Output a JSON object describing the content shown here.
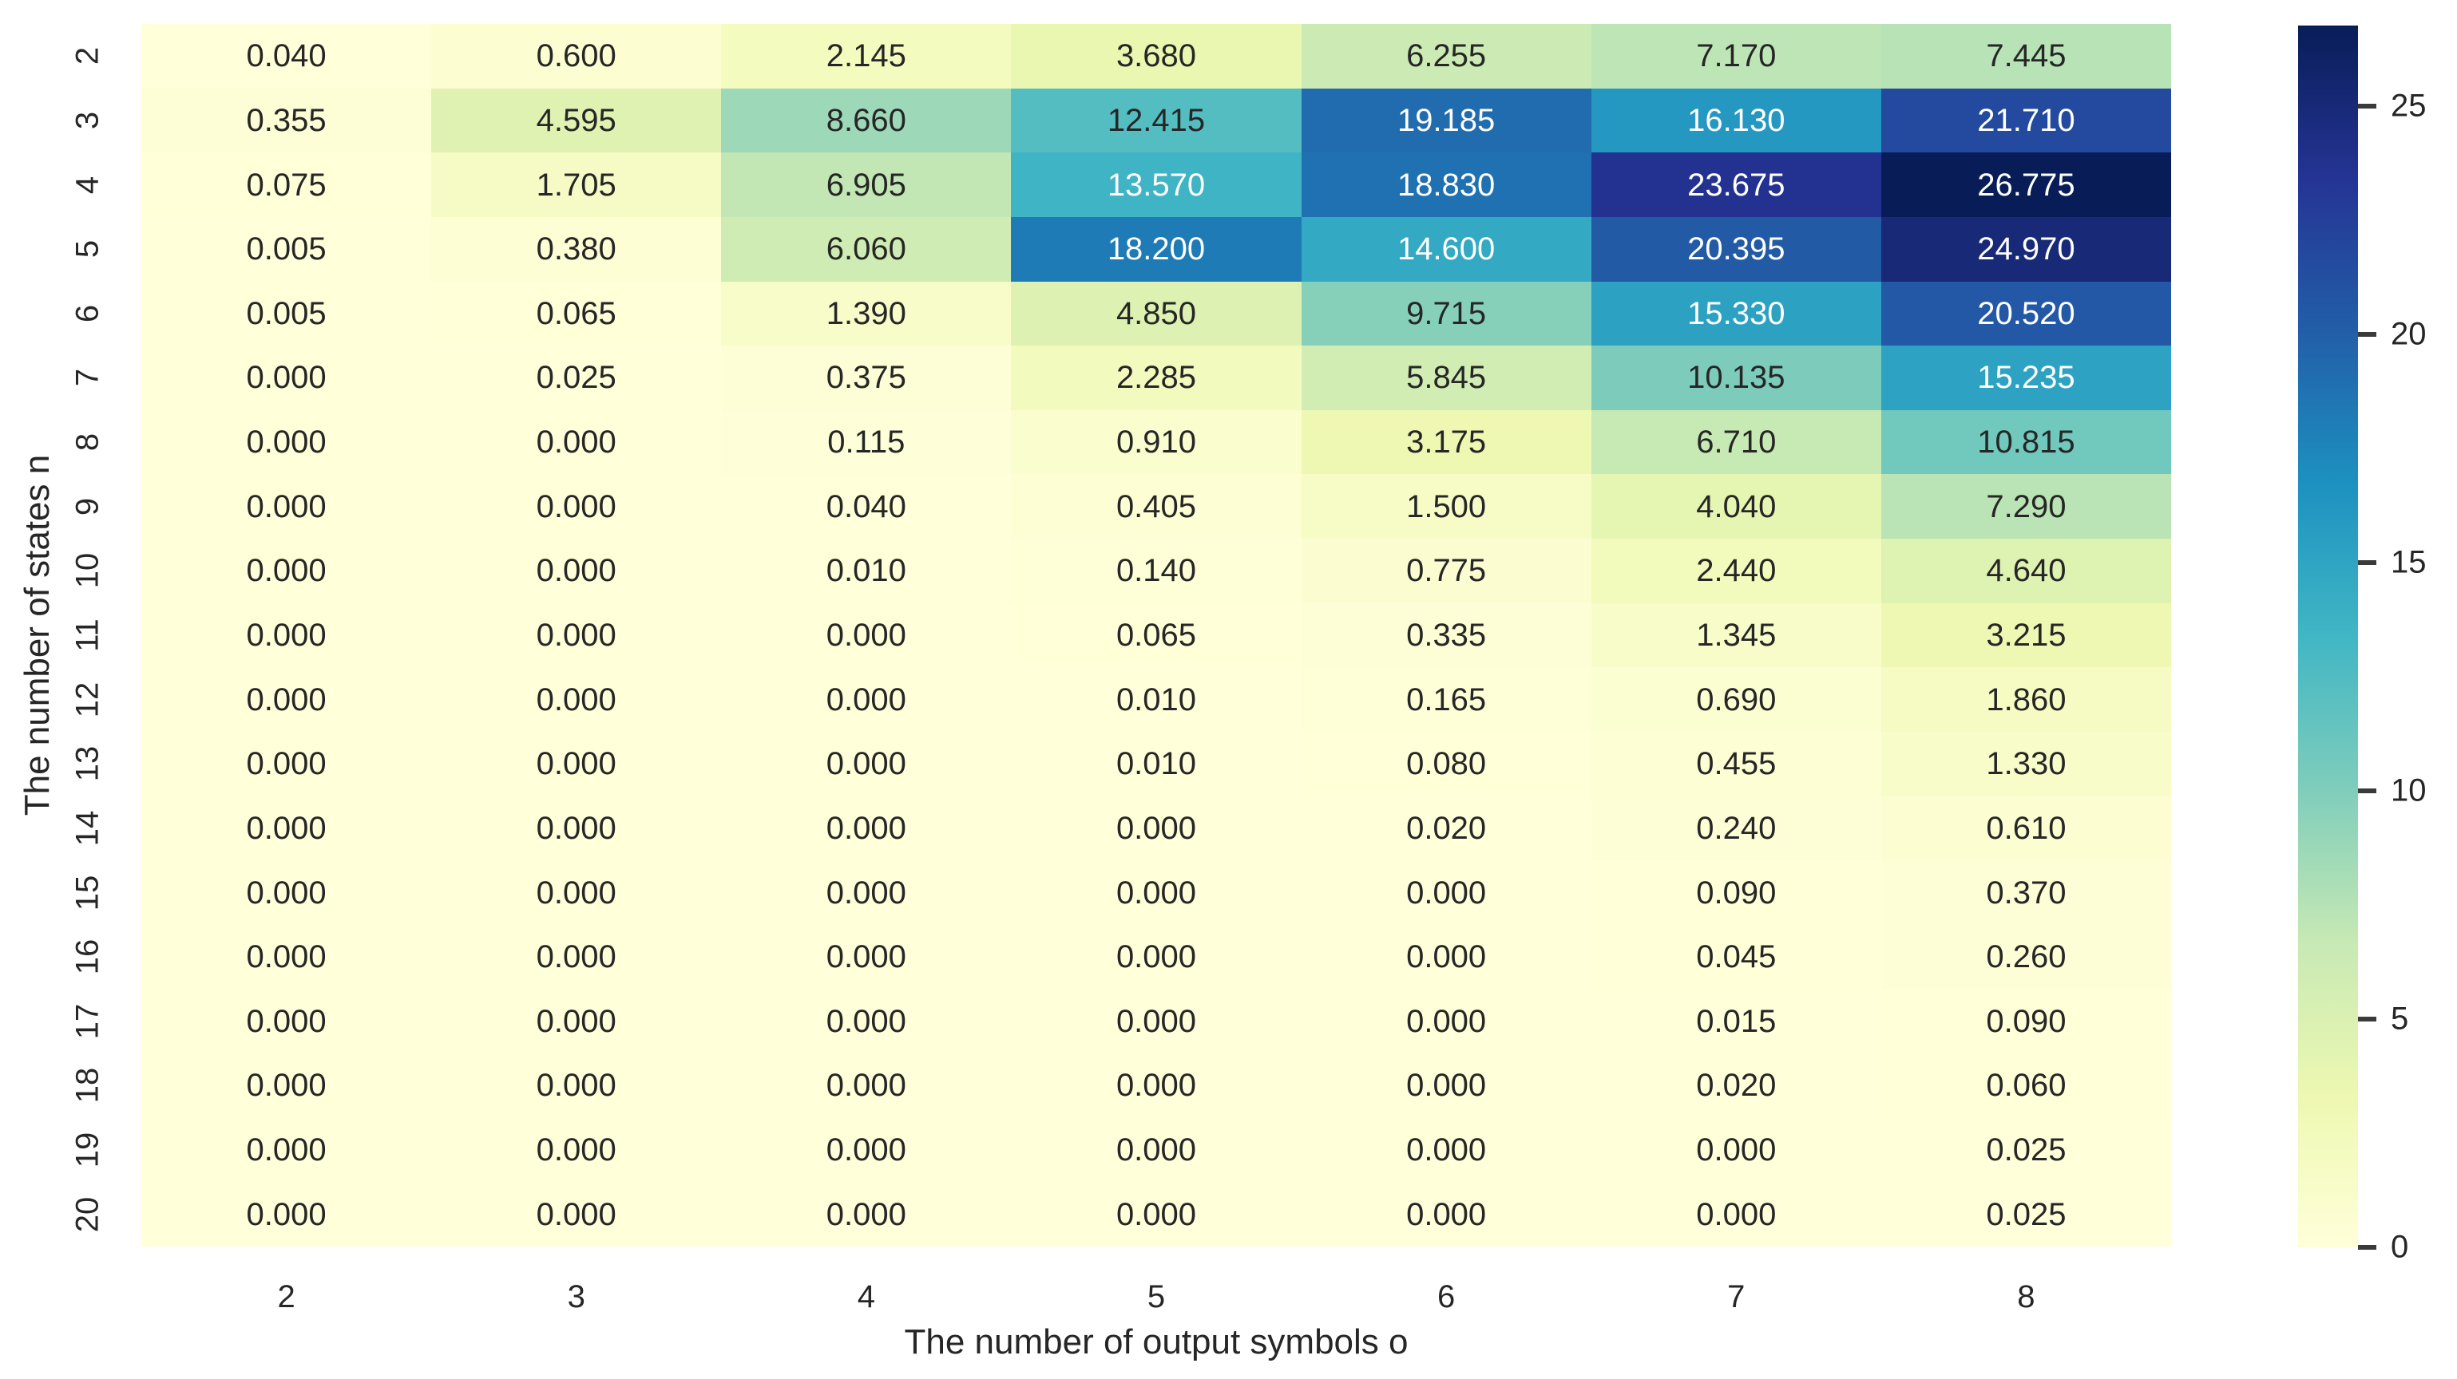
{
  "chart_data": {
    "type": "heatmap",
    "title": "",
    "xlabel": "The number of output symbols o",
    "ylabel": "The number of states n",
    "x_tick_labels": [
      "2",
      "3",
      "4",
      "5",
      "6",
      "7",
      "8"
    ],
    "y_tick_labels": [
      "2",
      "3",
      "4",
      "5",
      "6",
      "7",
      "8",
      "9",
      "10",
      "11",
      "12",
      "13",
      "14",
      "15",
      "16",
      "17",
      "18",
      "19",
      "20"
    ],
    "values": [
      [
        0.04,
        0.6,
        2.145,
        3.68,
        6.255,
        7.17,
        7.445
      ],
      [
        0.355,
        4.595,
        8.66,
        12.415,
        19.185,
        16.13,
        21.71
      ],
      [
        0.075,
        1.705,
        6.905,
        13.57,
        18.83,
        23.675,
        26.775
      ],
      [
        0.005,
        0.38,
        6.06,
        18.2,
        14.6,
        20.395,
        24.97
      ],
      [
        0.005,
        0.065,
        1.39,
        4.85,
        9.715,
        15.33,
        20.52
      ],
      [
        0.0,
        0.025,
        0.375,
        2.285,
        5.845,
        10.135,
        15.235
      ],
      [
        0.0,
        0.0,
        0.115,
        0.91,
        3.175,
        6.71,
        10.815
      ],
      [
        0.0,
        0.0,
        0.04,
        0.405,
        1.5,
        4.04,
        7.29
      ],
      [
        0.0,
        0.0,
        0.01,
        0.14,
        0.775,
        2.44,
        4.64
      ],
      [
        0.0,
        0.0,
        0.0,
        0.065,
        0.335,
        1.345,
        3.215
      ],
      [
        0.0,
        0.0,
        0.0,
        0.01,
        0.165,
        0.69,
        1.86
      ],
      [
        0.0,
        0.0,
        0.0,
        0.01,
        0.08,
        0.455,
        1.33
      ],
      [
        0.0,
        0.0,
        0.0,
        0.0,
        0.02,
        0.24,
        0.61
      ],
      [
        0.0,
        0.0,
        0.0,
        0.0,
        0.0,
        0.09,
        0.37
      ],
      [
        0.0,
        0.0,
        0.0,
        0.0,
        0.0,
        0.045,
        0.26
      ],
      [
        0.0,
        0.0,
        0.0,
        0.0,
        0.0,
        0.015,
        0.09
      ],
      [
        0.0,
        0.0,
        0.0,
        0.0,
        0.0,
        0.02,
        0.06
      ],
      [
        0.0,
        0.0,
        0.0,
        0.0,
        0.0,
        0.0,
        0.025
      ],
      [
        0.0,
        0.0,
        0.0,
        0.0,
        0.0,
        0.0,
        0.025
      ]
    ],
    "value_decimals": 3,
    "vmin": 0,
    "vmax": 26.775,
    "colormap_name": "YlGnBu",
    "colormap_stops": [
      {
        "t": 0.0,
        "color": "#ffffd9"
      },
      {
        "t": 0.125,
        "color": "#edf8b1"
      },
      {
        "t": 0.25,
        "color": "#c7e9b4"
      },
      {
        "t": 0.375,
        "color": "#7fcdbb"
      },
      {
        "t": 0.5,
        "color": "#41b6c4"
      },
      {
        "t": 0.625,
        "color": "#1d91c0"
      },
      {
        "t": 0.75,
        "color": "#225ea8"
      },
      {
        "t": 0.875,
        "color": "#253494"
      },
      {
        "t": 1.0,
        "color": "#081d58"
      }
    ],
    "annotation_dark_text_color": "#262626",
    "annotation_light_text_color": "#ffffff",
    "colorbar": {
      "tick_values": [
        0,
        5,
        10,
        15,
        20,
        25
      ],
      "tick_labels": [
        "0",
        "5",
        "10",
        "15",
        "20",
        "25"
      ],
      "position": "right"
    },
    "grid": false,
    "legend_position": "right-colorbar"
  }
}
